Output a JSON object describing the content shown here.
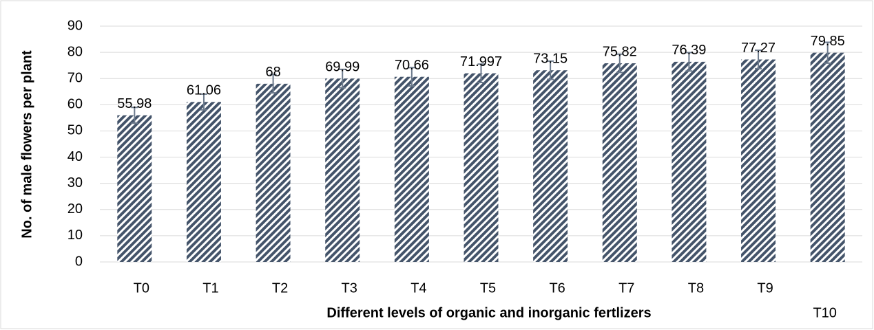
{
  "chart_data": {
    "type": "bar",
    "xlabel": "Different levels of organic and inorganic fertlizers",
    "ylabel": "No. of male flowers per plant",
    "categories": [
      "T0",
      "T1",
      "T2",
      "T3",
      "T4",
      "T5",
      "T6",
      "T7",
      "T8",
      "T9",
      "T10"
    ],
    "values": [
      55.98,
      61.06,
      68,
      69.99,
      70.66,
      71.997,
      73.15,
      75.82,
      76.39,
      77.27,
      79.85
    ],
    "errors": [
      3,
      3,
      3.5,
      3.5,
      3.5,
      3.5,
      3.5,
      3.5,
      3.5,
      3.5,
      4
    ],
    "color": "#44546a",
    "error_color": "#6c7a8c",
    "ylim": [
      0,
      90
    ],
    "yticks": [
      0,
      10,
      20,
      30,
      40,
      50,
      60,
      70,
      80,
      90
    ],
    "grid": true
  }
}
